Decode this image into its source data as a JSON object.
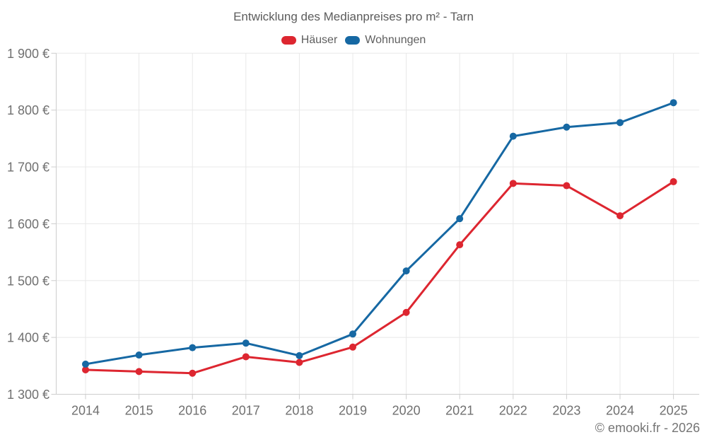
{
  "chart_data": {
    "type": "line",
    "title": "Entwicklung des Medianpreises pro m² - Tarn",
    "xlabel": "",
    "ylabel": "",
    "categories": [
      "2014",
      "2015",
      "2016",
      "2017",
      "2018",
      "2019",
      "2020",
      "2021",
      "2022",
      "2023",
      "2024",
      "2025"
    ],
    "series": [
      {
        "name": "Häuser",
        "color": "#dd2630",
        "values": [
          1343,
          1340,
          1337,
          1366,
          1356,
          1383,
          1444,
          1563,
          1671,
          1667,
          1614,
          1674
        ]
      },
      {
        "name": "Wohnungen",
        "color": "#1668a3",
        "values": [
          1353,
          1369,
          1382,
          1390,
          1368,
          1406,
          1517,
          1609,
          1754,
          1770,
          1778,
          1813
        ]
      }
    ],
    "ylim": [
      1300,
      1900
    ],
    "y_ticks": [
      1300,
      1400,
      1500,
      1600,
      1700,
      1800,
      1900
    ],
    "y_tick_labels": [
      "1 300 €",
      "1 400 €",
      "1 500 €",
      "1 600 €",
      "1 700 €",
      "1 800 €",
      "1 900 €"
    ],
    "currency_suffix": " €",
    "grid": true,
    "legend_position": "top",
    "grid_color": "#e8e8e8",
    "axis_color": "#cdcdcd"
  },
  "footer": {
    "text": "© emooki.fr - 2026"
  }
}
